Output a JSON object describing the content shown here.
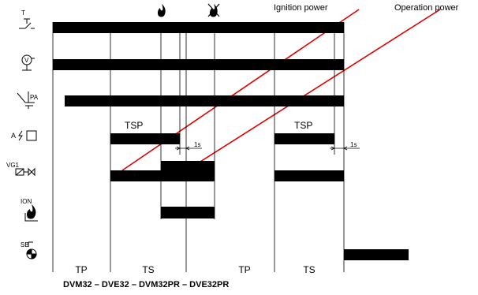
{
  "annotations": {
    "ignition_power": "Ignition power",
    "operation_power": "Operation power",
    "tsp_1": "TSP",
    "tsp_2": "TSP",
    "delay_1": "1s",
    "delay_2": "1s"
  },
  "signals": [
    {
      "id": "thermostat",
      "label": "T",
      "icon": "thermostat-switch-icon"
    },
    {
      "id": "fan",
      "label": "V",
      "icon": "fan-motor-icon"
    },
    {
      "id": "pressure_switch",
      "label": "PA",
      "icon": "pressure-switch-icon"
    },
    {
      "id": "ignition_transformer",
      "label": "A",
      "icon": "ignition-spark-icon"
    },
    {
      "id": "gas_valve",
      "label": "VG1",
      "icon": "gas-valve-icon"
    },
    {
      "id": "ionisation",
      "label": "ION",
      "icon": "flame-ionisation-icon"
    },
    {
      "id": "safety_block",
      "label": "SB",
      "icon": "lockout-lamp-icon"
    }
  ],
  "top_icons": {
    "flame_on": "flame-icon",
    "flame_off": "flame-crossed-icon"
  },
  "phases": [
    "TP",
    "TS",
    "TP",
    "TS"
  ],
  "footer": {
    "models": "DVM32 – DVE32 – DVM32PR – DVE32PR"
  },
  "colors": {
    "bar": "#000000",
    "power_line": "#e00000"
  }
}
